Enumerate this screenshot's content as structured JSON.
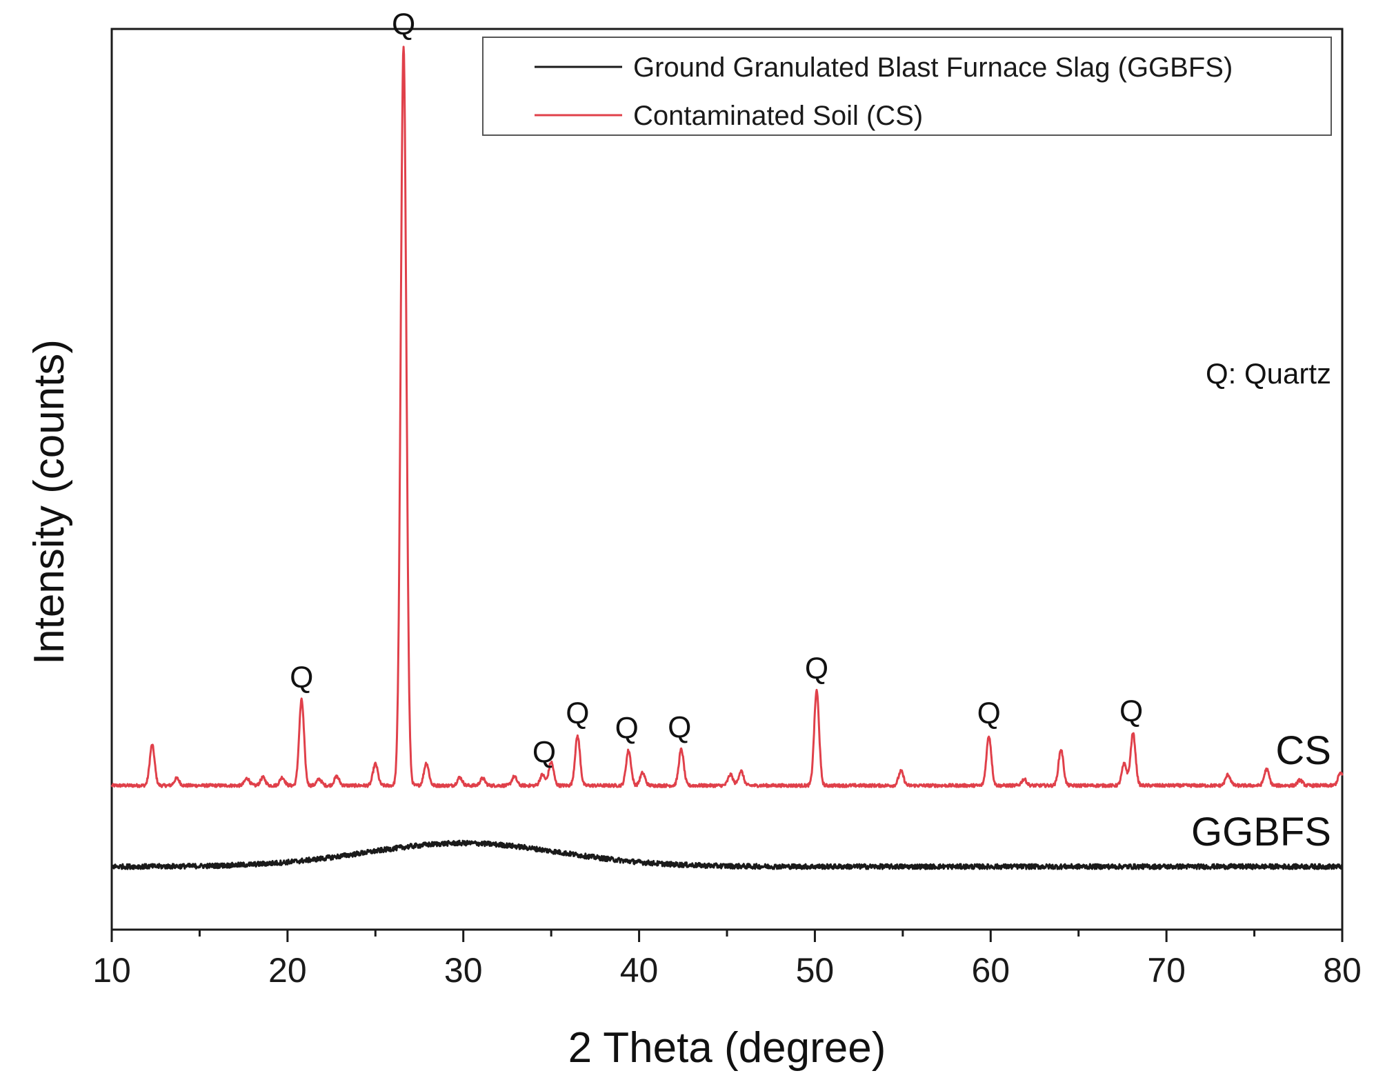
{
  "chart_data": {
    "type": "line",
    "title": "",
    "xlabel": "2 Theta (degree)",
    "ylabel": "Intensity (counts)",
    "xlim": [
      10,
      80
    ],
    "ylim": [
      0,
      100
    ],
    "x_ticks": [
      10,
      20,
      30,
      40,
      50,
      60,
      70,
      80
    ],
    "y_ticks_shown": false,
    "grid": false,
    "legend": {
      "placement": "top-right",
      "entries": [
        {
          "label": "Ground Granulated Blast Furnace Slag (GGBFS)",
          "color": "#1a1a1a"
        },
        {
          "label": "Contaminated Soil (CS)",
          "color": "#e0404a"
        }
      ]
    },
    "series": [
      {
        "name": "Contaminated Soil (CS)",
        "short_label": "CS",
        "color": "#e0404a",
        "baseline": 16,
        "peaks": [
          {
            "x": 12.3,
            "h": 4.5
          },
          {
            "x": 13.7,
            "h": 0.8
          },
          {
            "x": 17.7,
            "h": 0.8
          },
          {
            "x": 18.6,
            "h": 0.9
          },
          {
            "x": 19.7,
            "h": 0.9
          },
          {
            "x": 20.8,
            "h": 9.5
          },
          {
            "x": 21.8,
            "h": 0.7
          },
          {
            "x": 22.8,
            "h": 1.0
          },
          {
            "x": 25.0,
            "h": 2.4
          },
          {
            "x": 26.6,
            "h": 82
          },
          {
            "x": 27.9,
            "h": 2.5
          },
          {
            "x": 29.8,
            "h": 0.9
          },
          {
            "x": 31.1,
            "h": 0.8
          },
          {
            "x": 32.9,
            "h": 1.0
          },
          {
            "x": 34.5,
            "h": 1.2
          },
          {
            "x": 35.0,
            "h": 2.6
          },
          {
            "x": 36.5,
            "h": 5.5
          },
          {
            "x": 39.4,
            "h": 3.9
          },
          {
            "x": 40.2,
            "h": 1.4
          },
          {
            "x": 42.4,
            "h": 4.0
          },
          {
            "x": 45.2,
            "h": 1.2
          },
          {
            "x": 45.8,
            "h": 1.6
          },
          {
            "x": 50.1,
            "h": 10.5
          },
          {
            "x": 54.9,
            "h": 1.6
          },
          {
            "x": 59.9,
            "h": 5.5
          },
          {
            "x": 61.9,
            "h": 0.7
          },
          {
            "x": 64.0,
            "h": 4.0
          },
          {
            "x": 67.6,
            "h": 2.4
          },
          {
            "x": 68.1,
            "h": 5.8
          },
          {
            "x": 73.5,
            "h": 1.2
          },
          {
            "x": 75.7,
            "h": 1.8
          },
          {
            "x": 77.6,
            "h": 0.6
          },
          {
            "x": 79.9,
            "h": 1.4
          }
        ]
      },
      {
        "name": "Ground Granulated Blast Furnace Slag (GGBFS)",
        "short_label": "GGBFS",
        "color": "#1a1a1a",
        "baseline": 7,
        "amorphous_hump": {
          "center": 30,
          "width": 5.5,
          "h": 2.6
        }
      }
    ],
    "peak_annotations": [
      {
        "x": 20.8,
        "label": "Q"
      },
      {
        "x": 26.6,
        "label": "Q"
      },
      {
        "x": 34.6,
        "label": "Q"
      },
      {
        "x": 36.5,
        "label": "Q"
      },
      {
        "x": 39.3,
        "label": "Q"
      },
      {
        "x": 42.3,
        "label": "Q"
      },
      {
        "x": 50.1,
        "label": "Q"
      },
      {
        "x": 59.9,
        "label": "Q"
      },
      {
        "x": 68.0,
        "label": "Q"
      }
    ],
    "annotations": [
      {
        "text": "Q: Quartz",
        "placement": "right"
      }
    ]
  }
}
